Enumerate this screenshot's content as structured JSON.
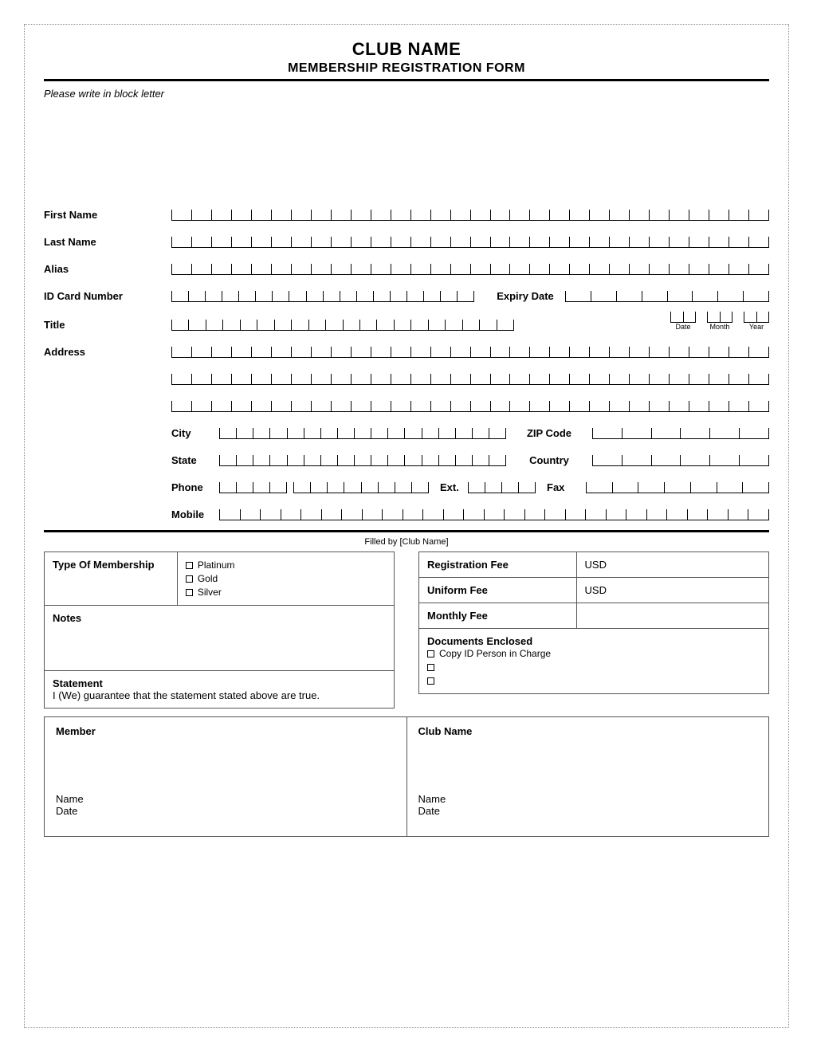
{
  "header": {
    "title": "CLUB NAME",
    "subtitle": "MEMBERSHIP REGISTRATION FORM",
    "instruction": "Please write in block letter"
  },
  "fields": {
    "first_name": "First Name",
    "last_name": "Last Name",
    "alias": "Alias",
    "id_card": "ID Card Number",
    "expiry": "Expiry Date",
    "title": "Title",
    "address": "Address",
    "city": "City",
    "zip": "ZIP Code",
    "state": "State",
    "country": "Country",
    "phone": "Phone",
    "ext": "Ext.",
    "fax": "Fax",
    "mobile": "Mobile",
    "date_caption": "Date",
    "month_caption": "Month",
    "year_caption": "Year"
  },
  "filled_by": "Filled by [Club Name]",
  "membership": {
    "label": "Type Of Membership",
    "options": [
      "Platinum",
      "Gold",
      "Silver"
    ]
  },
  "notes_label": "Notes",
  "statement": {
    "label": "Statement",
    "text": "I (We) guarantee that the statement stated above are true."
  },
  "fees": {
    "registration": "Registration Fee",
    "uniform": "Uniform Fee",
    "monthly": "Monthly Fee",
    "currency": "USD"
  },
  "docs": {
    "label": "Documents Enclosed",
    "items": [
      "Copy ID Person in Charge",
      "",
      ""
    ]
  },
  "sig": {
    "member": "Member",
    "club": "Club Name",
    "name": "Name",
    "date": "Date"
  }
}
